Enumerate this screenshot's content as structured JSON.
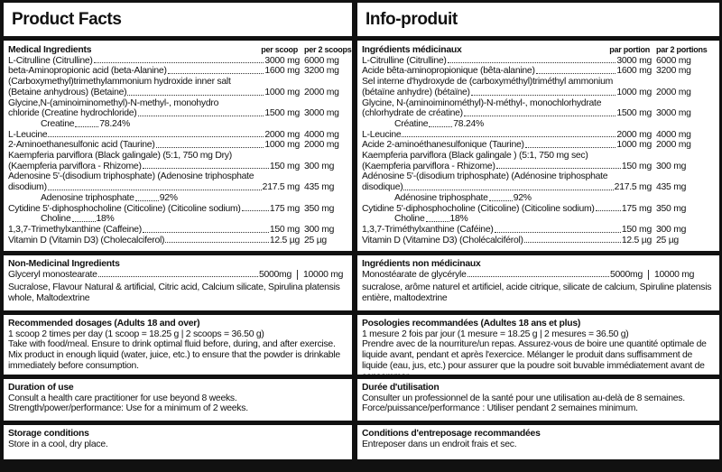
{
  "panels": [
    {
      "title": "Product Facts",
      "medicinal": {
        "heading": "Medical Ingredients",
        "col1": "per scoop",
        "col2": "per 2 scoops",
        "rows": [
          {
            "lines": [
              "L-Citrulline (Citrulline)"
            ],
            "amount": "3000 mg",
            "amount2": "6000 mg"
          },
          {
            "lines": [
              "beta-Aminopropionic acid (beta-Alanine)"
            ],
            "amount": "1600 mg",
            "amount2": "3200 mg"
          },
          {
            "lines": [
              "(Carboxymethyl)trimethylammonium hydroxide inner salt",
              "(Betaine anhydrous) (Betaine)"
            ],
            "amount": "1000 mg",
            "amount2": "2000 mg"
          },
          {
            "lines": [
              "Glycine,N-(aminoiminomethyl)-N-methyl-, monohydro",
              "chloride (Creatine hydrochloride)"
            ],
            "amount": "1500 mg",
            "amount2": "3000 mg",
            "sub": "Creatine",
            "sub_amount": "78.24%"
          },
          {
            "lines": [
              "L-Leucine"
            ],
            "amount": "2000 mg",
            "amount2": "4000 mg"
          },
          {
            "lines": [
              "2-Aminoethanesulfonic acid (Taurine)"
            ],
            "amount": "1000 mg",
            "amount2": "2000 mg"
          },
          {
            "lines": [
              "Kaempferia parviflora (Black galingale) (5:1, 750 mg Dry)",
              "(Kaempferia parviflora - Rhizome)"
            ],
            "amount": "150 mg",
            "amount2": "300 mg"
          },
          {
            "lines": [
              "Adenosine 5'-(disodium triphosphate) (Adenosine triphosphate",
              "disodium)"
            ],
            "amount": "217.5 mg",
            "amount2": "435 mg",
            "sub": "Adenosine triphosphate",
            "sub_amount": "92%"
          },
          {
            "lines": [
              "Cytidine 5'-diphosphocholine (Citicoline) (Citicoline sodium)"
            ],
            "amount": "175 mg",
            "amount2": "350 mg",
            "sub": "Choline",
            "sub_amount": "18%"
          },
          {
            "lines": [
              "1,3,7-Trimethylxanthine (Caffeine)"
            ],
            "amount": "150 mg",
            "amount2": "300 mg"
          },
          {
            "lines": [
              "Vitamin D (Vitamin D3) (Cholecalciferol)"
            ],
            "amount": "12.5 µg",
            "amount2": "25 µg"
          }
        ]
      },
      "non_medicinal": {
        "heading": "Non-Medicinal Ingredients",
        "item": "Glyceryl monostearate",
        "amount": "5000mg",
        "amount2": "10000 mg",
        "other": "Sucralose, Flavour Natural & artificial, Citric acid, Calcium silicate, Spirulina platensis whole, Maltodextrine"
      },
      "sections": [
        {
          "heading": "Recommended dosages (Adults 18 and over)",
          "text": [
            "1 scoop 2 times per day (1 scoop = 18.25 g  |  2 scoops = 36.50 g)",
            "Take with food/meal. Ensure to drink optimal fluid before, during, and after exercise.",
            "Mix product in enough liquid (water, juice, etc.) to ensure that the powder is drinkable immediately before consumption."
          ]
        },
        {
          "heading": "Duration of use",
          "text": [
            "Consult a health care practitioner for use beyond 8 weeks.",
            "Strength/power/performance: Use for a minimum of 2 weeks."
          ]
        },
        {
          "heading": "Storage conditions",
          "text": [
            "Store in a cool, dry place."
          ]
        }
      ]
    },
    {
      "title": "Info-produit",
      "medicinal": {
        "heading": "Ingrédients médicinaux",
        "col1": "par portion",
        "col2": "par 2 portions",
        "rows": [
          {
            "lines": [
              "L-Citrulline (Citrulline)"
            ],
            "amount": "3000 mg",
            "amount2": "6000 mg"
          },
          {
            "lines": [
              "Acide bêta-aminopropionique (bêta-alanine)"
            ],
            "amount": "1600 mg",
            "amount2": "3200 mg"
          },
          {
            "lines": [
              "Sel interne d'hydroxyde de (carboxyméthyl)triméthyl ammonium",
              "(bétaïne anhydre) (bétaïne)"
            ],
            "amount": "1000 mg",
            "amount2": "2000 mg"
          },
          {
            "lines": [
              "Glycine, N-(aminoiminométhyl)-N-méthyl-, monochlorhydrate",
              "(chlorhydrate de créatine)"
            ],
            "amount": "1500 mg",
            "amount2": "3000 mg",
            "sub": "Créatine",
            "sub_amount": "78.24%"
          },
          {
            "lines": [
              "L-Leucine"
            ],
            "amount": "2000 mg",
            "amount2": "4000 mg"
          },
          {
            "lines": [
              "Acide 2-aminoéthanesulfonique (Taurine)"
            ],
            "amount": "1000 mg",
            "amount2": "2000 mg"
          },
          {
            "lines": [
              "Kaempferia parviflora (Black galingale ) (5:1, 750 mg sec)",
              "(Kaempferia parviflora - Rhizome)"
            ],
            "amount": "150 mg",
            "amount2": "300 mg"
          },
          {
            "lines": [
              "Adénosine 5'-(disodium triphosphate) (Adénosine triphosphate",
              "disodique)"
            ],
            "amount": "217.5 mg",
            "amount2": "435 mg",
            "sub": "Adénosine triphosphate",
            "sub_amount": "92%"
          },
          {
            "lines": [
              "Cytidine 5'-diphosphocholine (Citicoline) (Citicoline sodium)"
            ],
            "amount": "175 mg",
            "amount2": "350 mg",
            "sub": "Choline",
            "sub_amount": "18%"
          },
          {
            "lines": [
              "1,3,7-Triméthylxanthine (Caféine)"
            ],
            "amount": "150 mg",
            "amount2": "300 mg"
          },
          {
            "lines": [
              "Vitamin D (Vitamine D3) (Cholécalciférol)"
            ],
            "amount": "12.5 µg",
            "amount2": "25 µg"
          }
        ]
      },
      "non_medicinal": {
        "heading": "Ingrédients non médicinaux",
        "item": "Monostéarate de glycéryle",
        "amount": "5000mg",
        "amount2": "10000 mg",
        "other": "sucralose, arôme naturel et artificiel, acide citrique, silicate de calcium, Spiruline platensis entière, maltodextrine"
      },
      "sections": [
        {
          "heading": "Posologies recommandées (Adultes 18 ans et plus)",
          "text": [
            "1 mesure 2 fois par jour (1 mesure = 18.25 g  |  2 mesures = 36.50 g)",
            "Prendre avec de la nourriture/un repas. Assurez-vous de boire une quantité optimale de liquide avant, pendant et après l'exercice.  Mélanger le produit dans suffisamment de liquide (eau, jus, etc.) pour assurer que la poudre soit buvable immédiatement avant de consommer."
          ]
        },
        {
          "heading": "Durée d'utilisation",
          "text": [
            "Consulter un professionnel de la santé pour une utilisation au-delà de 8 semaines.",
            "Force/puissance/performance : Utiliser pendant 2 semaines minimum."
          ]
        },
        {
          "heading": "Conditions d'entreposage recommandées",
          "text": [
            "Entreposer dans un endroit frais et sec."
          ]
        }
      ]
    }
  ]
}
